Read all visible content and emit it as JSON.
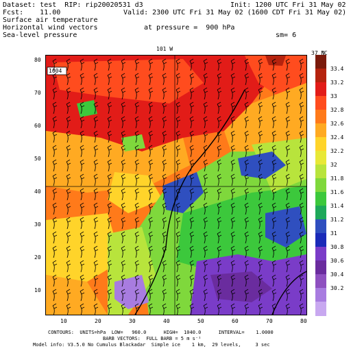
{
  "header": {
    "dataset": "Dataset: test  RIP: rip20020531 d3",
    "init": "Init: 1200 UTC Fri 31 May 02",
    "fcst": "Fcst:    11.00",
    "valid": "Valid: 2300 UTC Fri 31 May 02 (1600 CDT Fri 31 May 02)",
    "field1": "Surface air temperature",
    "field2": "Horizontal wind vectors",
    "field3": "Sea-level pressure",
    "pressure": "at pressure =  900 hPa",
    "sm": "sm= 6"
  },
  "map": {
    "top_label_lon": "101 W",
    "top_label_lat": "37 N",
    "isobar_label": "1004",
    "x_ticks": [
      "10",
      "20",
      "30",
      "40",
      "50",
      "60",
      "70",
      "80"
    ],
    "y_ticks": [
      "80",
      "70",
      "60",
      "50",
      "40",
      "30",
      "20",
      "10"
    ]
  },
  "colorbar": {
    "unit": "°C",
    "colors": [
      "#7a1a0c",
      "#b5230e",
      "#e21c18",
      "#ff4c1e",
      "#ff7a1a",
      "#ffaa22",
      "#ffd42a",
      "#e8e837",
      "#b8e43c",
      "#7fd83c",
      "#3cc83c",
      "#1ea85a",
      "#2f4fbf",
      "#1a2ab8",
      "#7a3cc8",
      "#6a2c9e",
      "#8e50c0",
      "#a87ce0",
      "#c8a8f0"
    ],
    "labels": [
      "33.4",
      "33.2",
      "33",
      "32.8",
      "32.6",
      "32.4",
      "32.2",
      "32",
      "31.8",
      "31.6",
      "31.4",
      "31.2",
      "31",
      "30.8",
      "30.6",
      "30.4",
      "30.2"
    ]
  },
  "footer": {
    "line1": "CONTOURS:  UNITS=hPa  LOW=   960.0      HIGH=  1040.0      INTERVAL=    1.0000",
    "line2": "BARB VECTORS:  FULL BARB = 5 m s⁻¹",
    "line3": "Model info: V3.5.0 No Cumulus Blackadar  Simple ice    1 km,  29 levels,     3 sec"
  }
}
